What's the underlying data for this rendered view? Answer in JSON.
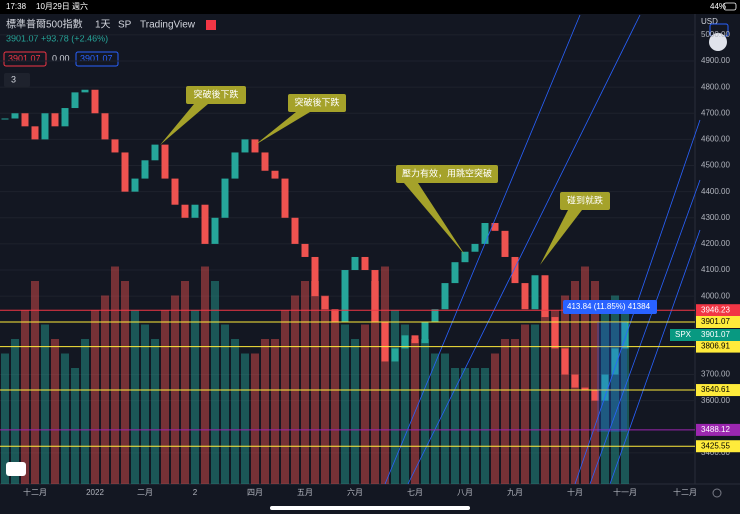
{
  "status_bar": {
    "time": "17:38",
    "date": "10月29日 週六",
    "battery": "44%"
  },
  "header": {
    "symbol": "標準普爾500指數",
    "interval": "1天",
    "exchange": "SP",
    "source": "TradingView",
    "quote": "3901.07 +93.78 (+2.46%)",
    "bid": "3901.07",
    "spread": "0.00",
    "ask": "3901.07",
    "indicators": "3"
  },
  "chart_data": {
    "type": "candlestick",
    "categories": [
      null,
      null,
      null,
      "十二月",
      null,
      null,
      null,
      null,
      null,
      "2022",
      null,
      null,
      null,
      null,
      "二月",
      null,
      null,
      null,
      null,
      "2",
      null,
      null,
      null,
      null,
      null,
      "四月",
      null,
      null,
      null,
      null,
      "五月",
      null,
      null,
      null,
      null,
      "六月",
      null,
      null,
      null,
      null,
      null,
      "七月",
      null,
      null,
      null,
      null,
      "八月",
      null,
      null,
      null,
      null,
      "九月",
      null,
      null,
      null,
      null,
      null,
      "十月",
      null,
      null,
      null,
      null,
      "十一月",
      null,
      null,
      null,
      null,
      null,
      "十二月"
    ],
    "series": [
      {
        "name": "SPX",
        "values": [
          4680,
          4700,
          4650,
          4600,
          4700,
          4650,
          4720,
          4780,
          4790,
          4700,
          4600,
          4550,
          4400,
          4450,
          4520,
          4580,
          4450,
          4350,
          4300,
          4350,
          4200,
          4300,
          4450,
          4550,
          4600,
          4550,
          4480,
          4450,
          4300,
          4200,
          4150,
          4000,
          3950,
          3900,
          4100,
          4150,
          4100,
          3900,
          3750,
          3800,
          3850,
          3820,
          3900,
          3950,
          4050,
          4130,
          4170,
          4200,
          4280,
          4250,
          4150,
          4050,
          3950,
          4080,
          3920,
          3800,
          3700,
          3650,
          3640,
          3600,
          3700,
          3800,
          3901.07,
          null,
          null,
          null,
          null,
          null,
          null
        ]
      },
      {
        "name": "volume",
        "values": [
          4.5,
          5,
          6,
          7,
          5.5,
          5,
          4.5,
          4,
          5,
          6,
          6.5,
          7.5,
          7,
          6,
          5.5,
          5,
          6,
          6.5,
          7,
          6,
          7.5,
          7,
          5.5,
          5,
          4.5,
          4.5,
          5,
          5,
          6,
          6.5,
          7,
          7,
          6.5,
          6,
          5.5,
          5,
          5.5,
          7,
          7.5,
          6,
          5.5,
          5,
          5,
          4.5,
          4.5,
          4,
          4,
          4,
          4,
          4.5,
          5,
          5,
          5.5,
          5.5,
          6,
          6,
          6.5,
          7,
          7.5,
          7,
          6,
          6.5,
          6,
          null,
          null,
          null,
          null,
          null,
          null
        ]
      }
    ],
    "up_color": "#26a69a",
    "down_color": "#ef5350",
    "ylim": [
      3281,
      5057
    ],
    "vlim": [
      0,
      16
    ],
    "yticks": [
      {
        "value": 5000,
        "label": "5000.00"
      },
      {
        "value": 4900,
        "label": "4900.00"
      },
      {
        "value": 4800,
        "label": "4800.00"
      },
      {
        "value": 4700,
        "label": "4700.00"
      },
      {
        "value": 4600,
        "label": "4600.00"
      },
      {
        "value": 4500,
        "label": "4500.00"
      },
      {
        "value": 4400,
        "label": "4400.00"
      },
      {
        "value": 4300,
        "label": "4300.00"
      },
      {
        "value": 4200,
        "label": "4200.00"
      },
      {
        "value": 4100,
        "label": "4100.00"
      },
      {
        "value": 4000,
        "label": "4000.00"
      },
      {
        "value": 3700,
        "label": "3700.00"
      },
      {
        "value": 3600,
        "label": "3600.00"
      },
      {
        "value": 3400,
        "label": "3400.00"
      }
    ],
    "y_axis_label": "USD",
    "levels": [
      {
        "value": 3946.23,
        "label": "3946.23",
        "color": "#f23645"
      },
      {
        "value": 3901.07,
        "label": "3901.07",
        "color": "#ffeb3b"
      },
      {
        "value": 3806.91,
        "label": "3806.91",
        "color": "#ffeb3b"
      },
      {
        "value": 3640.61,
        "label": "3640.61",
        "color": "#ffeb3b"
      },
      {
        "value": 3488.12,
        "label": "3488.12",
        "color": "#9c27b0"
      },
      {
        "value": 3425.55,
        "label": "3425.55",
        "color": "#ffeb3b"
      }
    ],
    "last_price": {
      "name": "SPX",
      "value": 3901.07,
      "label": "3901.07",
      "color": "#089981"
    },
    "measure": "413.84 (11.85%) 41384",
    "annotations": [
      "突破後下跌",
      "突破後下跌",
      "壓力有效，用跳空突破",
      "碰到就跌"
    ]
  }
}
